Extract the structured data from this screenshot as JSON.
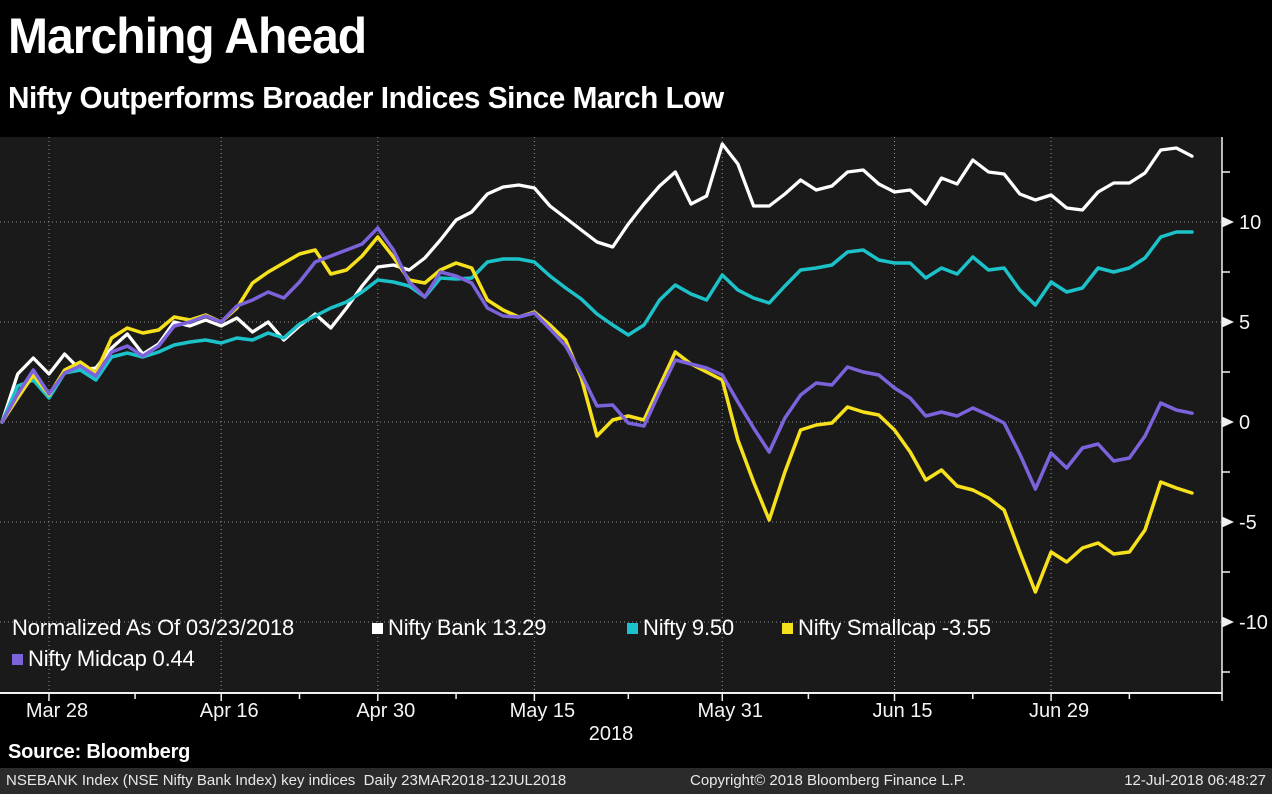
{
  "header": {
    "title": "Marching Ahead",
    "subtitle": "Nifty Outperforms Broader Indices Since March Low"
  },
  "legend": {
    "note": "Normalized As Of 03/23/2018",
    "items": [
      {
        "label": "Nifty Bank 13.29",
        "color": "#ffffff"
      },
      {
        "label": "Nifty 9.50",
        "color": "#1cc2c9"
      },
      {
        "label": "Nifty Smallcap -3.55",
        "color": "#f6e11c"
      },
      {
        "label": "Nifty Midcap 0.44",
        "color": "#7c63dc"
      }
    ]
  },
  "source_line": "Source: Bloomberg",
  "footer": {
    "left": "NSEBANK Index (NSE Nifty Bank Index) key indices  Daily 23MAR2018-12JUL2018",
    "center": "Copyright© 2018 Bloomberg Finance L.P.",
    "right": "12-Jul-2018 06:48:27"
  },
  "chart_data": {
    "type": "line",
    "title": "Marching Ahead",
    "subtitle": "Nifty Outperforms Broader Indices Since March Low",
    "normalized_note": "Normalized As Of 03/23/2018",
    "x_axis_year": "2018",
    "n_points": 77,
    "x_range": [
      "23MAR2018",
      "12JUL2018"
    ],
    "x_ticks": [
      {
        "label": "Mar 28",
        "index": 3
      },
      {
        "label": "Apr 16",
        "index": 14
      },
      {
        "label": "Apr 30",
        "index": 24
      },
      {
        "label": "May 15",
        "index": 34
      },
      {
        "label": "May 31",
        "index": 46
      },
      {
        "label": "Jun 15",
        "index": 57
      },
      {
        "label": "Jun 29",
        "index": 67
      }
    ],
    "y_ticks": [
      10,
      5,
      0,
      -5,
      -10
    ],
    "y_minor_step": 2.5,
    "ylim": [
      -13.9,
      14.3
    ],
    "grid": true,
    "legend_position": "bottom-left-inside",
    "colors": {
      "grid": "#8f8f8f",
      "axis": "#f2f2f2",
      "plot_bg": "#1a1a1a"
    },
    "series": [
      {
        "name": "Nifty Bank",
        "last_value": 13.29,
        "color": "#ffffff",
        "width": 3.3,
        "values": [
          0,
          2.4,
          3.2,
          2.4,
          3.4,
          2.6,
          2.7,
          3.7,
          4.4,
          3.4,
          3.9,
          5.0,
          4.8,
          5.1,
          4.8,
          5.2,
          4.5,
          5.0,
          4.1,
          4.8,
          5.4,
          4.7,
          5.7,
          6.8,
          7.75,
          7.85,
          7.6,
          8.2,
          9.1,
          10.1,
          10.5,
          11.4,
          11.75,
          11.85,
          11.7,
          10.8,
          10.2,
          9.6,
          9.0,
          8.75,
          9.9,
          10.9,
          11.8,
          12.5,
          10.9,
          11.3,
          13.9,
          12.9,
          10.8,
          10.8,
          11.4,
          12.1,
          11.6,
          11.8,
          12.5,
          12.6,
          11.9,
          11.5,
          11.6,
          10.9,
          12.2,
          11.9,
          13.1,
          12.5,
          12.4,
          11.4,
          11.1,
          11.35,
          10.7,
          10.6,
          11.5,
          11.95,
          11.95,
          12.45,
          13.6,
          13.7,
          13.29
        ]
      },
      {
        "name": "Nifty",
        "last_value": 9.5,
        "color": "#1cc2c9",
        "width": 3.5,
        "values": [
          0,
          1.8,
          2.1,
          1.2,
          2.45,
          2.6,
          2.1,
          3.25,
          3.45,
          3.25,
          3.5,
          3.85,
          4.0,
          4.1,
          3.95,
          4.2,
          4.1,
          4.45,
          4.2,
          4.9,
          5.3,
          5.7,
          6.0,
          6.5,
          7.1,
          7.0,
          6.8,
          6.25,
          7.2,
          7.15,
          7.2,
          8.0,
          8.15,
          8.15,
          8.0,
          7.3,
          6.7,
          6.15,
          5.4,
          4.85,
          4.35,
          4.85,
          6.1,
          6.85,
          6.4,
          6.1,
          7.35,
          6.6,
          6.2,
          5.95,
          6.8,
          7.6,
          7.7,
          7.85,
          8.5,
          8.6,
          8.1,
          7.95,
          7.95,
          7.2,
          7.7,
          7.4,
          8.25,
          7.6,
          7.7,
          6.6,
          5.85,
          7.0,
          6.5,
          6.7,
          7.7,
          7.5,
          7.7,
          8.2,
          9.25,
          9.5,
          9.5
        ]
      },
      {
        "name": "Nifty Smallcap",
        "last_value": -3.55,
        "color": "#f6e11c",
        "width": 3.5,
        "values": [
          0,
          1.2,
          2.35,
          1.35,
          2.6,
          3.0,
          2.45,
          4.2,
          4.7,
          4.45,
          4.6,
          5.25,
          5.1,
          5.35,
          5.0,
          5.7,
          6.95,
          7.5,
          7.95,
          8.4,
          8.6,
          7.4,
          7.6,
          8.3,
          9.25,
          8.25,
          7.1,
          6.95,
          7.6,
          7.95,
          7.7,
          6.1,
          5.6,
          5.25,
          5.5,
          4.85,
          4.1,
          2.2,
          -0.7,
          0.1,
          0.3,
          0.1,
          1.8,
          3.5,
          2.9,
          2.5,
          2.1,
          -0.9,
          -3.0,
          -4.9,
          -2.5,
          -0.4,
          -0.15,
          -0.05,
          0.75,
          0.5,
          0.35,
          -0.4,
          -1.5,
          -2.9,
          -2.4,
          -3.2,
          -3.4,
          -3.8,
          -4.4,
          -6.5,
          -8.5,
          -6.5,
          -7.0,
          -6.3,
          -6.05,
          -6.6,
          -6.5,
          -5.4,
          -3.0,
          -3.3,
          -3.55
        ]
      },
      {
        "name": "Nifty Midcap",
        "last_value": 0.44,
        "color": "#7c63dc",
        "width": 3.5,
        "values": [
          0,
          1.4,
          2.6,
          1.4,
          2.45,
          2.8,
          2.3,
          3.5,
          3.8,
          3.3,
          3.8,
          4.8,
          5.0,
          5.3,
          5.0,
          5.8,
          6.1,
          6.5,
          6.2,
          7.0,
          8.0,
          8.3,
          8.6,
          8.9,
          9.7,
          8.6,
          7.0,
          6.25,
          7.5,
          7.3,
          6.95,
          5.7,
          5.3,
          5.25,
          5.45,
          4.65,
          3.8,
          2.4,
          0.8,
          0.85,
          -0.05,
          -0.2,
          1.5,
          3.1,
          2.9,
          2.7,
          2.35,
          1.0,
          -0.3,
          -1.5,
          0.2,
          1.35,
          1.95,
          1.85,
          2.75,
          2.5,
          2.35,
          1.7,
          1.2,
          0.3,
          0.5,
          0.3,
          0.7,
          0.35,
          -0.05,
          -1.6,
          -3.35,
          -1.55,
          -2.3,
          -1.3,
          -1.1,
          -1.95,
          -1.8,
          -0.7,
          0.95,
          0.6,
          0.44
        ]
      }
    ]
  }
}
